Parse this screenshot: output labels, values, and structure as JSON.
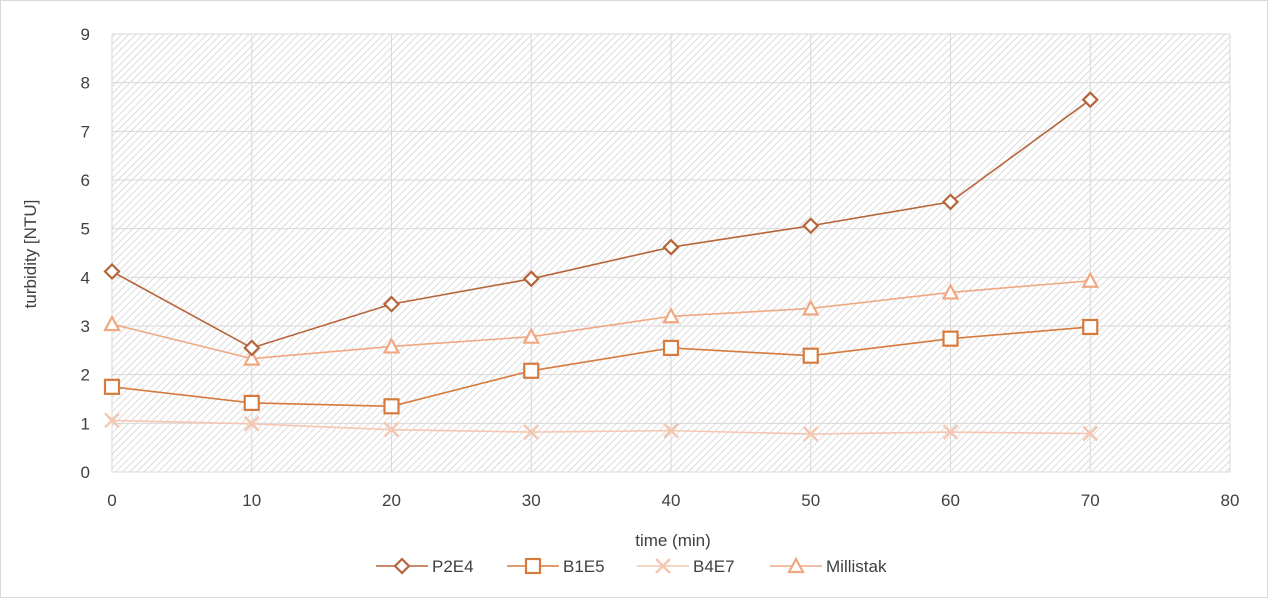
{
  "chart_data": {
    "type": "line",
    "title": "",
    "xlabel": "time (min)",
    "ylabel": "turbidity [NTU]",
    "xlim": [
      0,
      80
    ],
    "ylim": [
      0,
      9
    ],
    "x_ticks": [
      0,
      10,
      20,
      30,
      40,
      50,
      60,
      70,
      80
    ],
    "y_ticks": [
      0,
      1,
      2,
      3,
      4,
      5,
      6,
      7,
      8,
      9
    ],
    "grid": true,
    "legend_position": "bottom",
    "x": [
      0,
      10,
      20,
      30,
      40,
      50,
      60,
      70
    ],
    "series": [
      {
        "name": "P2E4",
        "marker": "diamond",
        "color": "#b5653a",
        "values": [
          4.12,
          2.55,
          3.45,
          3.97,
          4.62,
          5.06,
          5.55,
          7.65
        ]
      },
      {
        "name": "B1E5",
        "marker": "square",
        "color": "#d77a3e",
        "values": [
          1.75,
          1.42,
          1.35,
          2.08,
          2.55,
          2.39,
          2.74,
          2.98
        ]
      },
      {
        "name": "B4E7",
        "marker": "x",
        "color": "#f4c7b2",
        "values": [
          1.06,
          0.99,
          0.87,
          0.82,
          0.85,
          0.78,
          0.82,
          0.79
        ]
      },
      {
        "name": "Millistak",
        "marker": "triangle",
        "color": "#efa882",
        "values": [
          3.04,
          2.33,
          2.58,
          2.78,
          3.2,
          3.36,
          3.69,
          3.93
        ]
      }
    ]
  }
}
